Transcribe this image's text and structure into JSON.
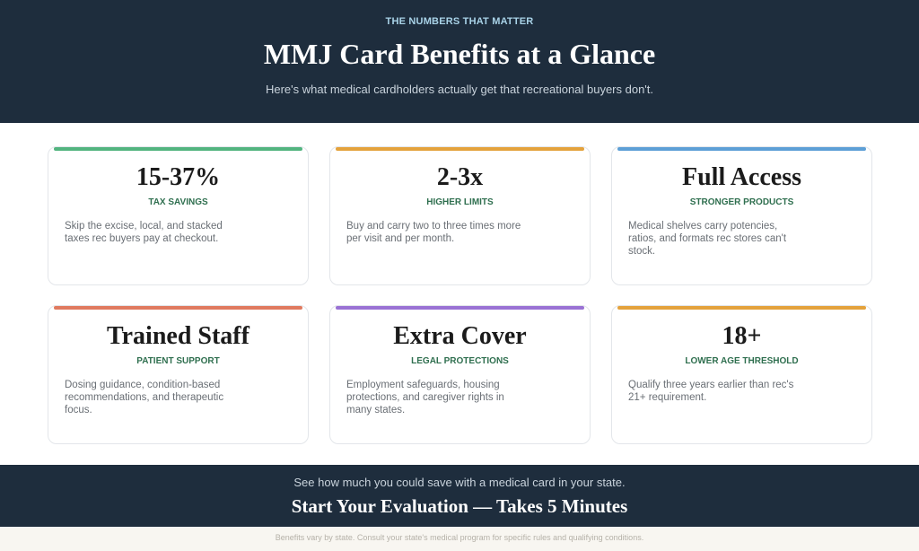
{
  "header": {
    "eyebrow": "THE NUMBERS THAT MATTER",
    "title": "MMJ Card Benefits at a Glance",
    "subtitle": "Here's what medical cardholders actually get that recreational buyers don't."
  },
  "cards": [
    {
      "stat": "15-37%",
      "label": "TAX SAVINGS",
      "description": "Skip the excise, local, and stacked taxes rec buyers pay at checkout."
    },
    {
      "stat": "2-3x",
      "label": "HIGHER LIMITS",
      "description": "Buy and carry two to three times more per visit and per month."
    },
    {
      "stat": "Full Access",
      "label": "STRONGER PRODUCTS",
      "description": "Medical shelves carry potencies, ratios, and formats rec stores can't stock."
    },
    {
      "stat": "Trained Staff",
      "label": "PATIENT SUPPORT",
      "description": "Dosing guidance, condition-based recommendations, and therapeutic focus."
    },
    {
      "stat": "Extra Cover",
      "label": "LEGAL PROTECTIONS",
      "description": "Employment safeguards, housing protections, and caregiver rights in many states."
    },
    {
      "stat": "18+",
      "label": "LOWER AGE THRESHOLD",
      "description": "Qualify three years earlier than rec's 21+ requirement."
    }
  ],
  "cta": {
    "text": "See how much you could save with a medical card in your state.",
    "button": "Start Your Evaluation — Takes 5 Minutes"
  },
  "disclaimer": "Benefits vary by state. Consult your state's medical program for specific rules and qualifying conditions."
}
